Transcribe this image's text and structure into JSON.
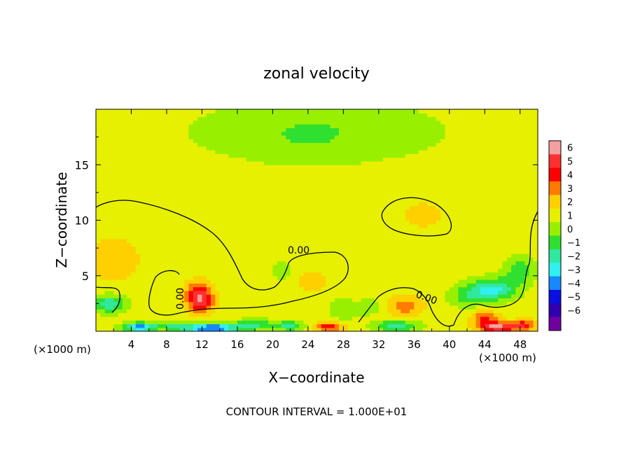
{
  "chart_data": {
    "type": "heatmap",
    "title": "zonal velocity",
    "xlabel": "X−coordinate",
    "ylabel": "Z−coordinate",
    "x_unit_left": "(×1000 m)",
    "x_unit_right": "(×1000 m)",
    "footer": "CONTOUR INTERVAL = 1.000E+01",
    "xlim": [
      0,
      50
    ],
    "ylim": [
      0,
      20
    ],
    "x_ticks": [
      4,
      8,
      12,
      16,
      20,
      24,
      28,
      32,
      36,
      40,
      44,
      48
    ],
    "y_ticks": [
      5,
      10,
      15
    ],
    "x_tick_labels": [
      "4",
      "8",
      "12",
      "16",
      "20",
      "24",
      "28",
      "32",
      "36",
      "40",
      "44",
      "48"
    ],
    "y_tick_labels": [
      "5",
      "10",
      "15"
    ],
    "colorbar": {
      "levels": [
        "6",
        "5",
        "4",
        "3",
        "2",
        "1",
        "0",
        "−1",
        "−2",
        "−3",
        "−4",
        "−5",
        "−6"
      ],
      "colors": [
        "#f4a0a0",
        "#ff3030",
        "#ff0000",
        "#ff7a00",
        "#ffd000",
        "#e6f000",
        "#98f000",
        "#30e030",
        "#30e8a0",
        "#30f0f0",
        "#1888ff",
        "#0a10e0",
        "#3000b0",
        "#7000a0"
      ]
    },
    "contour_labels": [
      "0.00",
      "0.00",
      "0.00"
    ],
    "field": {
      "background": 0.5,
      "features": [
        {
          "x": 25,
          "z": 18,
          "sx": 15,
          "sz": 3,
          "v": -1.3
        },
        {
          "x": 24,
          "z": 17.5,
          "sx": 5,
          "sz": 2,
          "v": -0.4
        },
        {
          "x": 37,
          "z": 10.5,
          "sx": 5,
          "sz": 2.5,
          "v": 0.6
        },
        {
          "x": 2,
          "z": 6.5,
          "sx": 3,
          "sz": 2,
          "v": 1.2
        },
        {
          "x": 21,
          "z": 5.5,
          "sx": 1,
          "sz": 1,
          "v": -1.2
        },
        {
          "x": 11.8,
          "z": 2.8,
          "sx": 1.5,
          "sz": 1.1,
          "v": 4.0
        },
        {
          "x": 11.5,
          "z": 3.8,
          "sx": 1.5,
          "sz": 1.0,
          "v": 1.5
        },
        {
          "x": 1.5,
          "z": 2.5,
          "sx": 1.8,
          "sz": 0.8,
          "v": -3.2
        },
        {
          "x": 45,
          "z": 3.8,
          "sx": 2.5,
          "sz": 1.0,
          "v": -3.8
        },
        {
          "x": 48,
          "z": 5.5,
          "sx": 1.8,
          "sz": 1.2,
          "v": -2.2
        },
        {
          "x": 42,
          "z": 3.2,
          "sx": 2,
          "sz": 1,
          "v": -2.0
        },
        {
          "x": 35,
          "z": 2.3,
          "sx": 2,
          "sz": 0.9,
          "v": 2.0
        },
        {
          "x": 24.5,
          "z": 4.5,
          "sx": 2,
          "sz": 1.2,
          "v": 1.0
        },
        {
          "x": 28,
          "z": 2.0,
          "sx": 1.5,
          "sz": 1,
          "v": -1.4
        },
        {
          "x": 31,
          "z": 2.2,
          "sx": 1.5,
          "sz": 0.8,
          "v": -1.1
        },
        {
          "x": 5,
          "z": 0.4,
          "sx": 2,
          "sz": 0.4,
          "v": -5.0
        },
        {
          "x": 13,
          "z": 0.3,
          "sx": 3,
          "sz": 0.4,
          "v": -6.0
        },
        {
          "x": 18,
          "z": 0.6,
          "sx": 2.5,
          "sz": 0.5,
          "v": -2.5
        },
        {
          "x": 26.5,
          "z": 0.4,
          "sx": 1.5,
          "sz": 0.4,
          "v": 3.5
        },
        {
          "x": 34,
          "z": 0.5,
          "sx": 2.5,
          "sz": 0.5,
          "v": -3.2
        },
        {
          "x": 44,
          "z": 1.2,
          "sx": 1.5,
          "sz": 0.6,
          "v": 3.0
        },
        {
          "x": 45.5,
          "z": 0.4,
          "sx": 2,
          "sz": 0.4,
          "v": 5.0
        },
        {
          "x": 48.5,
          "z": 0.6,
          "sx": 1.5,
          "sz": 0.5,
          "v": 3.0
        },
        {
          "x": 22,
          "z": 0.5,
          "sx": 1.5,
          "sz": 0.4,
          "v": -3.0
        },
        {
          "x": 9,
          "z": 0.5,
          "sx": 1.5,
          "sz": 0.4,
          "v": -2.5
        }
      ]
    }
  }
}
